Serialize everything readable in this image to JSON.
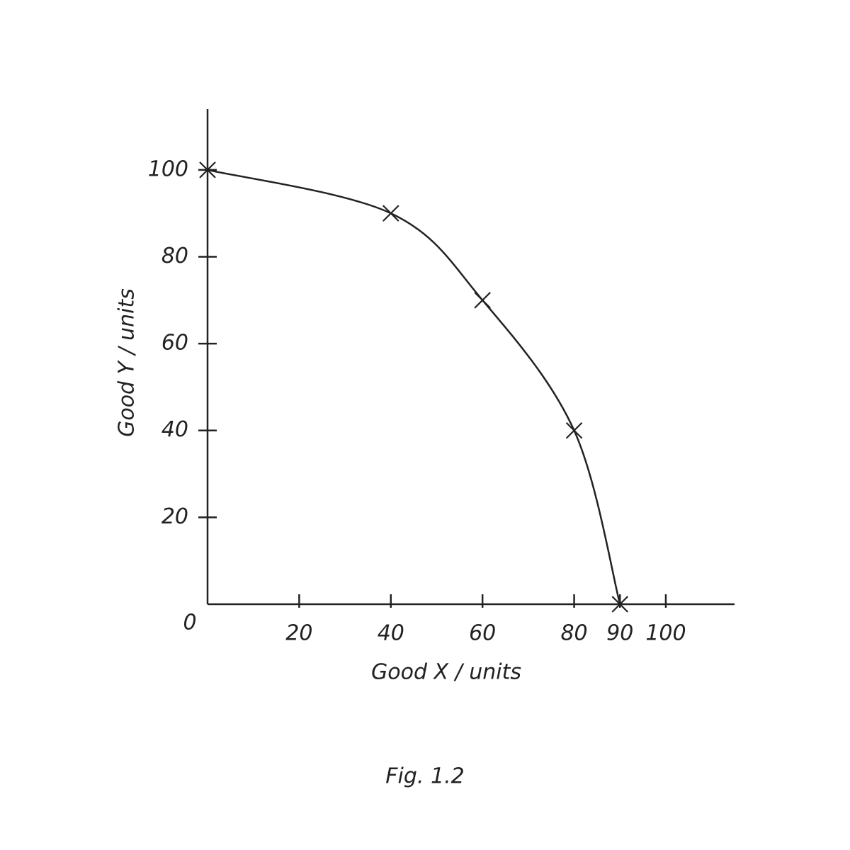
{
  "chart_data": {
    "type": "line",
    "title": "Fig. 1.2",
    "x_label": "Good X / units",
    "y_label": "Good Y / units",
    "x": [
      0,
      40,
      60,
      80,
      90
    ],
    "series": [
      {
        "values": [
          100,
          90,
          70,
          40,
          0
        ],
        "color": "#222222"
      }
    ],
    "xlim": [
      0,
      115
    ],
    "ylim": [
      0,
      114
    ],
    "xticks": [
      0,
      20,
      40,
      60,
      80,
      90,
      100
    ],
    "yticks": [
      20,
      40,
      60,
      80,
      100
    ],
    "marker": "x",
    "grid": false
  }
}
